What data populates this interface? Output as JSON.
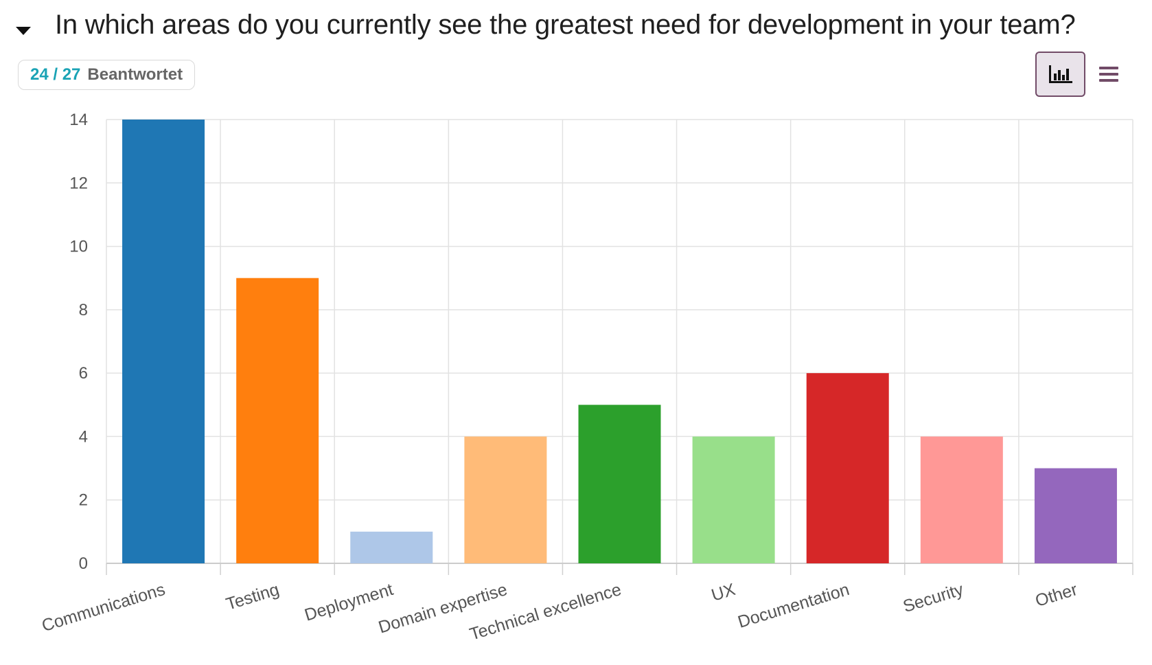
{
  "question": {
    "title": "In which areas do you currently see the greatest need for development in your team?",
    "answered_count": "24 / 27",
    "answered_label": "Beantwortet"
  },
  "view_toggle": {
    "active": "graph",
    "graph_icon": "bar-chart-icon",
    "list_icon": "list-icon"
  },
  "colors": {
    "accent": "#714b67",
    "count": "#1aa3b5"
  },
  "chart_data": {
    "type": "bar",
    "title": "",
    "xlabel": "",
    "ylabel": "",
    "ylim": [
      0,
      14
    ],
    "yticks": [
      0,
      2,
      4,
      6,
      8,
      10,
      12,
      14
    ],
    "grid": true,
    "categories": [
      "Communications",
      "Testing",
      "Deployment",
      "Domain expertise",
      "Technical excellence",
      "UX",
      "Documentation",
      "Security",
      "Other"
    ],
    "values": [
      14,
      9,
      1,
      4,
      5,
      4,
      6,
      4,
      3
    ],
    "colors": [
      "#1f77b4",
      "#ff7f0e",
      "#aec7e8",
      "#ffbb78",
      "#2ca02c",
      "#98df8a",
      "#d62728",
      "#ff9896",
      "#9467bd"
    ]
  }
}
